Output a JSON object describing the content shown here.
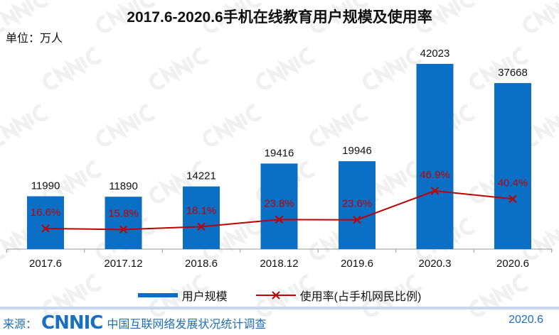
{
  "chart_data": {
    "type": "bar+line",
    "title": "2017.6-2020.6手机在线教育用户规模及使用率",
    "unit_label": "单位：万人",
    "categories": [
      "2017.6",
      "2017.12",
      "2018.6",
      "2018.12",
      "2019.6",
      "2020.3",
      "2020.6"
    ],
    "series": [
      {
        "name": "用户规模",
        "type": "bar",
        "color": "#0b70c5",
        "values": [
          11990,
          11890,
          14221,
          19416,
          19946,
          42023,
          37668
        ]
      },
      {
        "name": "使用率(占手机网民比例)",
        "type": "line",
        "color": "#c00000",
        "marker": "x",
        "values": [
          16.6,
          15.8,
          18.1,
          23.8,
          23.6,
          46.9,
          40.4
        ],
        "labels": [
          "16.6%",
          "15.8%",
          "18.1%",
          "23.8%",
          "23.6%",
          "46.9%",
          "40.4%"
        ]
      }
    ],
    "legend": "bottom",
    "grid": false
  },
  "footer": {
    "source_prefix": "来源：",
    "logo": "CNNIC",
    "source_text": "中国互联网络发展状况统计调查",
    "date": "2020.6"
  },
  "watermark": "CNNIC"
}
